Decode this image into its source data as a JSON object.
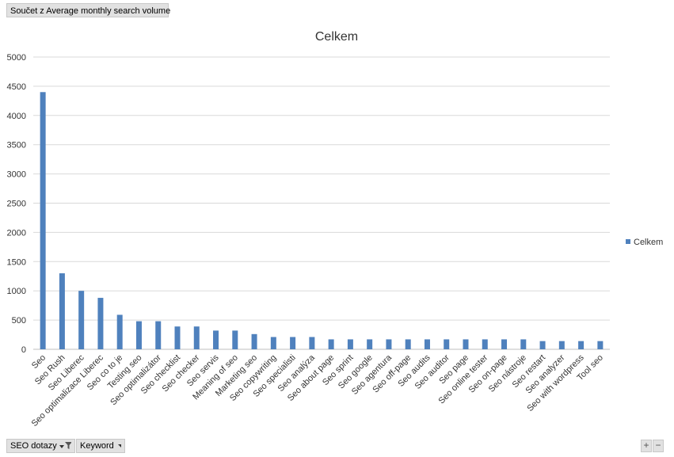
{
  "pivot": {
    "value_field": "Součet z Average monthly search volume",
    "filters": [
      {
        "label": "SEO dotazy",
        "icon": "filter-dropdown-icon"
      },
      {
        "label": "Keyword",
        "icon": "dropdown-arrow-icon"
      }
    ],
    "zoom_in": "+",
    "zoom_out": "−"
  },
  "chart_data": {
    "type": "bar",
    "title": "Celkem",
    "xlabel": "",
    "ylabel": "",
    "ylim": [
      0,
      5000
    ],
    "yticks": [
      0,
      500,
      1000,
      1500,
      2000,
      2500,
      3000,
      3500,
      4000,
      4500,
      5000
    ],
    "grid": true,
    "legend_position": "right",
    "color": "#4f81bd",
    "categories": [
      "Seo",
      "Seo Rush",
      "Seo Liberec",
      "Seo optimalizace Liberec",
      "Seo co to je",
      "Testing seo",
      "Seo optimalizátor",
      "Seo checklist",
      "Seo checker",
      "Seo servis",
      "Meaning of seo",
      "Marketing seo",
      "Seo copywriting",
      "Seo specialisti",
      "Seo analýza",
      "Seo about page",
      "Seo sprint",
      "Seo google",
      "Seo agentura",
      "Seo off-page",
      "Seo audits",
      "Seo auditor",
      "Seo page",
      "Seo online tester",
      "Seo on-page",
      "Seo nástroje",
      "Seo restart",
      "Seo analyzer",
      "Seo with wordpress",
      "Tool seo"
    ],
    "series": [
      {
        "name": "Celkem",
        "values": [
          4400,
          1300,
          1000,
          880,
          590,
          480,
          480,
          390,
          390,
          320,
          320,
          260,
          210,
          210,
          210,
          170,
          170,
          170,
          170,
          170,
          170,
          170,
          170,
          170,
          170,
          170,
          140,
          140,
          140,
          140
        ]
      }
    ]
  }
}
